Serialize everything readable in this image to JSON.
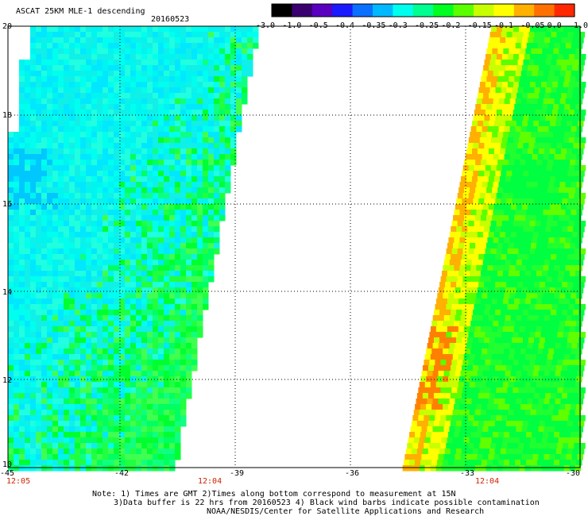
{
  "title": "ASCAT 25KM MLE-1 descending",
  "date": "20160523",
  "colorbar": {
    "labels": [
      "-3.0",
      "-1.0",
      "-0.5",
      "-0.4",
      "-0.35",
      "-0.3",
      "-0.25",
      "-0.2",
      "-0.15",
      "-0.1",
      "-0.05",
      "0.0",
      "1.0"
    ],
    "colors": [
      "#000000",
      "#3a0070",
      "#5a00c0",
      "#1a1aff",
      "#0a70ff",
      "#00b8ff",
      "#00ffee",
      "#00ff90",
      "#00ff20",
      "#5aff00",
      "#c8ff00",
      "#ffff00",
      "#ffb000",
      "#ff7000",
      "#ff2800"
    ]
  },
  "map": {
    "lon_range": [
      -45,
      -30
    ],
    "lat_range": [
      10,
      20
    ],
    "x_ticks": [
      "-45",
      "-42",
      "-39",
      "-36",
      "-33",
      "-30"
    ],
    "y_ticks": [
      "20",
      "18",
      "16",
      "14",
      "12",
      "10"
    ],
    "grid": true
  },
  "time_labels": [
    "12:05",
    "12:04",
    "12:04"
  ],
  "notes": [
    "Note: 1) Times are GMT 2)Times along bottom correspond to measurement at 15N",
    "3)Data buffer is 22 hrs from 20160523 4) Black wind barbs indicate possible contamination",
    "NOAA/NESDIS/Center for Satellite Applications and Research"
  ]
}
